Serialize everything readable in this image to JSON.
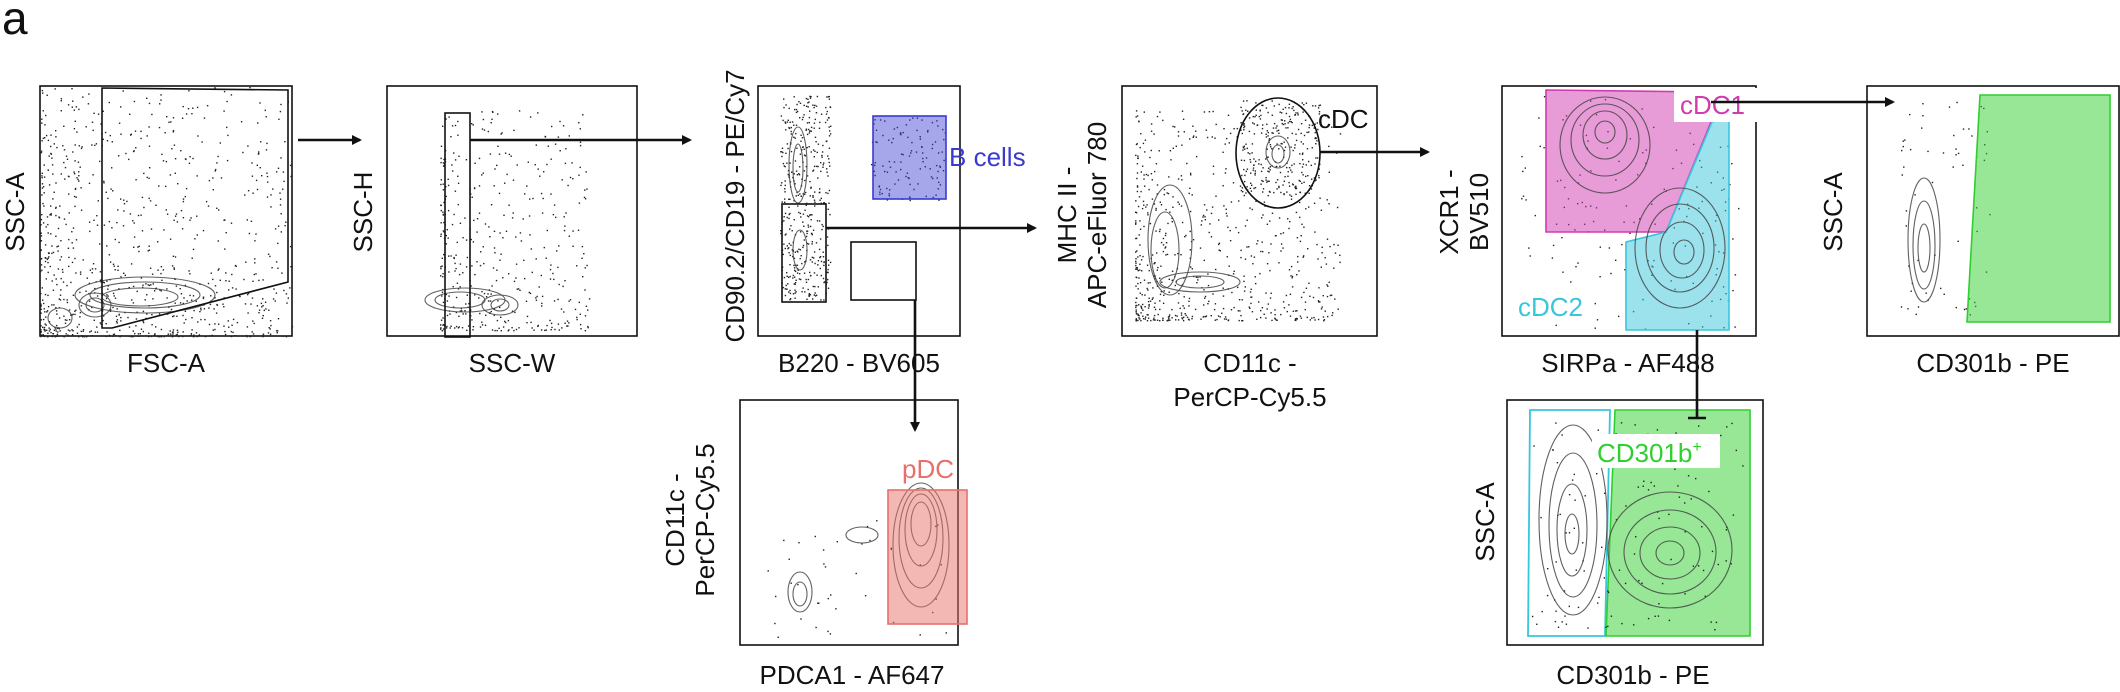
{
  "panel_letter": "a",
  "plots": {
    "p1": {
      "xlabel": "FSC-A",
      "ylabel": "SSC-A"
    },
    "p2": {
      "xlabel": "SSC-W",
      "ylabel": "SSC-H"
    },
    "p3": {
      "xlabel": "B220 - BV605",
      "ylabel": "CD90.2/CD19 - PE/Cy7",
      "gates": {
        "bcells": "B cells"
      }
    },
    "p4": {
      "xlabel": "PDCA1 - AF647",
      "ylabel_line1": "CD11c -",
      "ylabel_line2": "PerCP-Cy5.5",
      "gates": {
        "pdc": "pDC"
      }
    },
    "p5": {
      "xlabel_line1": "CD11c -",
      "xlabel_line2": "PerCP-Cy5.5",
      "ylabel_line1": "MHC II -",
      "ylabel_line2": "APC-eFluor 780",
      "gates": {
        "cdc": "cDC"
      }
    },
    "p6": {
      "xlabel": "SIRPa - AF488",
      "ylabel_line1": "XCR1 -",
      "ylabel_line2": "BV510",
      "gates": {
        "cdc1": "cDC1",
        "cdc2": "cDC2"
      }
    },
    "p7": {
      "xlabel": "CD301b - PE",
      "ylabel": "SSC-A"
    },
    "p8": {
      "xlabel": "CD301b - PE",
      "ylabel": "SSC-A",
      "gates": {
        "cd301b_main": "CD301b",
        "cd301b_sup": "+"
      }
    }
  },
  "colors": {
    "bcells": "#3a3ad0",
    "pdc": "#e8706a",
    "cdc1": "#d23ab0",
    "cdc2": "#38c6dc",
    "cd301b": "#2fcf2f",
    "ink": "#111111"
  }
}
